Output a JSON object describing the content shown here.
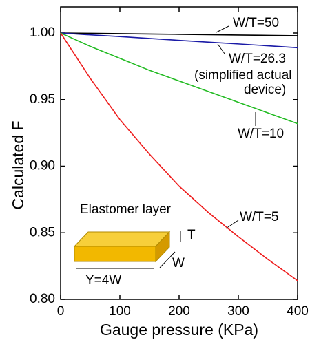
{
  "chart_data": {
    "type": "line",
    "y_label": "Calculated F",
    "x_label": "Gauge pressure (KPa)",
    "x": [
      0,
      50,
      100,
      150,
      200,
      250,
      300,
      350,
      400
    ],
    "series": [
      {
        "name": "W/T=50",
        "color": "#000000",
        "values": [
          1.0,
          0.99975,
          0.9995,
          0.99925,
          0.999,
          0.99875,
          0.9985,
          0.99825,
          0.998
        ]
      },
      {
        "name": "W/T=26.3",
        "color": "#1a1aa6",
        "values": [
          1.0,
          0.9986,
          0.9973,
          0.9959,
          0.9945,
          0.9931,
          0.9918,
          0.9904,
          0.989
        ]
      },
      {
        "name": "W/T=10",
        "color": "#22bb22",
        "values": [
          1.0,
          0.99,
          0.981,
          0.972,
          0.964,
          0.956,
          0.948,
          0.94,
          0.932
        ]
      },
      {
        "name": "W/T=5",
        "color": "#ee1c1c",
        "values": [
          1.0,
          0.966,
          0.935,
          0.909,
          0.885,
          0.865,
          0.847,
          0.83,
          0.814
        ]
      }
    ],
    "annotations": [
      "(simplified actual",
      "device)",
      "Elastomer layer",
      "T",
      "W",
      "Y=4W"
    ],
    "xlim": [
      0,
      400
    ],
    "xticks": [
      0,
      100,
      200,
      300,
      400
    ],
    "ylim": [
      0.8,
      1.0
    ],
    "yticks": [
      {
        "value": 0.8,
        "label": "0.80"
      },
      0.85,
      {
        "value": 0.9,
        "label": "0.90"
      },
      0.95,
      {
        "value": 1.0,
        "label": "1.00"
      }
    ]
  }
}
